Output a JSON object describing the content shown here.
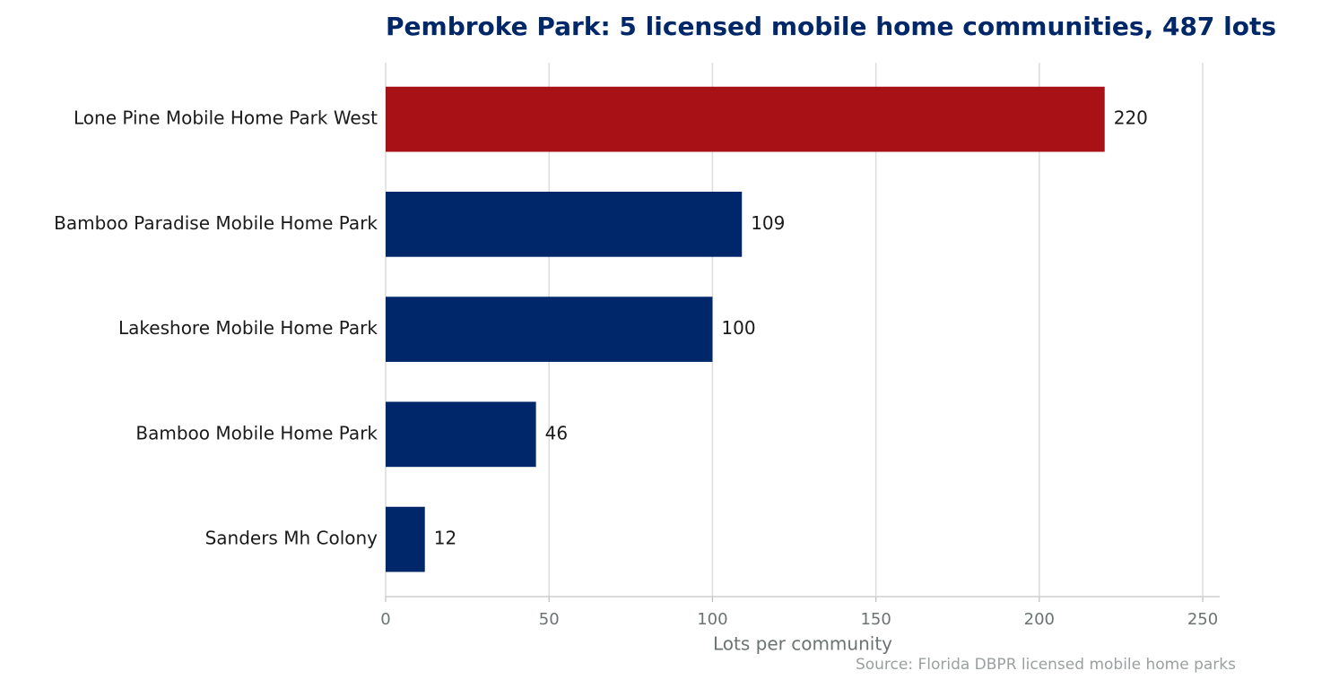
{
  "chart_data": {
    "type": "bar",
    "orientation": "horizontal",
    "title": "Pembroke Park: 5 licensed mobile home communities, 487 lots",
    "categories": [
      "Lone Pine Mobile Home Park West",
      "Bamboo Paradise Mobile Home Park",
      "Lakeshore Mobile Home Park",
      "Bamboo Mobile Home Park",
      "Sanders Mh Colony"
    ],
    "values": [
      220,
      109,
      100,
      46,
      12
    ],
    "colors": [
      "#a81116",
      "#00276a",
      "#00276a",
      "#00276a",
      "#00276a"
    ],
    "xlabel": "Lots per community",
    "source": "Source: Florida DBPR licensed mobile home parks",
    "xlim": [
      0,
      255.2
    ],
    "xticks": [
      0,
      50,
      100,
      150,
      200,
      250
    ],
    "grid": true
  }
}
